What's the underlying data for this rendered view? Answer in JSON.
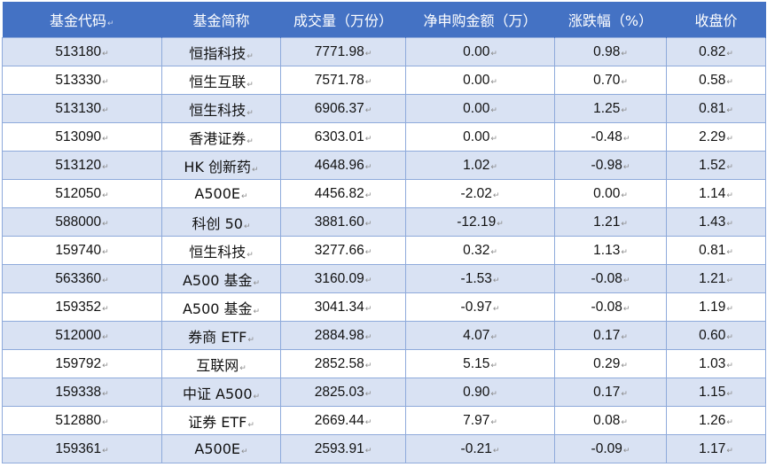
{
  "table": {
    "headers": [
      "基金代码",
      "基金简称",
      "成交量（万份）",
      "净申购金额（万）",
      "涨跌幅（%）",
      "收盘价"
    ],
    "paragraph_mark": "↵",
    "rows": [
      {
        "code": "513180",
        "name": "恒指科技",
        "volume": "7771.98",
        "net": "0.00",
        "change": "0.98",
        "close": "0.82"
      },
      {
        "code": "513330",
        "name": "恒生互联",
        "volume": "7571.78",
        "net": "0.00",
        "change": "0.70",
        "close": "0.58"
      },
      {
        "code": "513130",
        "name": "恒生科技",
        "volume": "6906.37",
        "net": "0.00",
        "change": "1.25",
        "close": "0.81"
      },
      {
        "code": "513090",
        "name": "香港证券",
        "volume": "6303.01",
        "net": "0.00",
        "change": "-0.48",
        "close": "2.29"
      },
      {
        "code": "513120",
        "name": "HK 创新药",
        "volume": "4648.96",
        "net": "1.02",
        "change": "-0.98",
        "close": "1.52"
      },
      {
        "code": "512050",
        "name": "A500E",
        "volume": "4456.82",
        "net": "-2.02",
        "change": "0.00",
        "close": "1.14"
      },
      {
        "code": "588000",
        "name": "科创 50",
        "volume": "3881.60",
        "net": "-12.19",
        "change": "1.21",
        "close": "1.43"
      },
      {
        "code": "159740",
        "name": "恒生科技",
        "volume": "3277.66",
        "net": "0.32",
        "change": "1.13",
        "close": "0.81"
      },
      {
        "code": "563360",
        "name": "A500 基金",
        "volume": "3160.09",
        "net": "-1.53",
        "change": "-0.08",
        "close": "1.21"
      },
      {
        "code": "159352",
        "name": "A500 基金",
        "volume": "3041.34",
        "net": "-0.97",
        "change": "-0.08",
        "close": "1.19"
      },
      {
        "code": "512000",
        "name": "券商 ETF",
        "volume": "2884.98",
        "net": "4.07",
        "change": "0.17",
        "close": "0.60"
      },
      {
        "code": "159792",
        "name": "互联网",
        "volume": "2852.58",
        "net": "5.15",
        "change": "0.29",
        "close": "1.03"
      },
      {
        "code": "159338",
        "name": "中证 A500",
        "volume": "2825.03",
        "net": "0.90",
        "change": "0.17",
        "close": "1.15"
      },
      {
        "code": "512880",
        "name": "证券 ETF",
        "volume": "2669.44",
        "net": "7.97",
        "change": "0.08",
        "close": "1.26"
      },
      {
        "code": "159361",
        "name": "A500E",
        "volume": "2593.91",
        "net": "-0.21",
        "change": "-0.09",
        "close": "1.17"
      }
    ]
  },
  "colors": {
    "header_bg": "#4472c4",
    "band_bg": "#d9e2f3",
    "grid": "#8eaadb"
  }
}
